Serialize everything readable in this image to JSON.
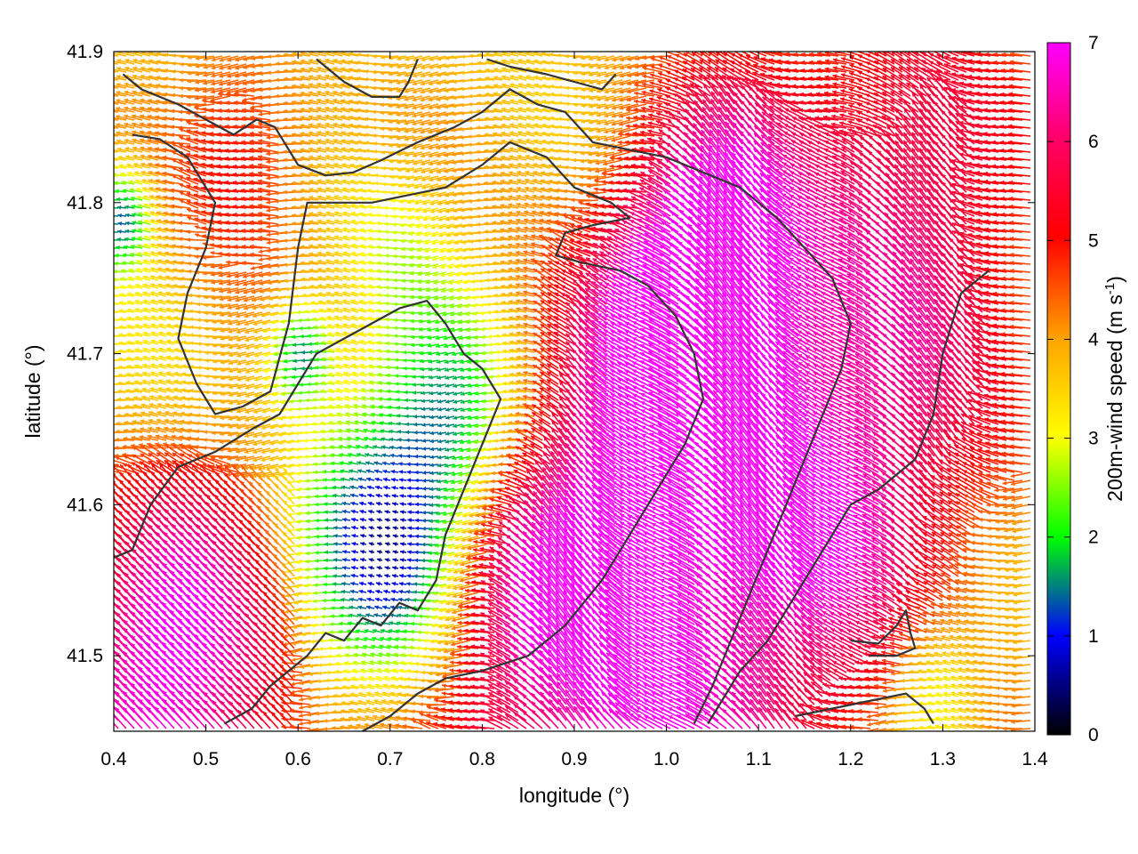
{
  "chart_data": {
    "type": "vector-field",
    "xlabel": "longitude (°)",
    "ylabel": "latitude (°)",
    "xlim": [
      0.4,
      1.4
    ],
    "ylim": [
      41.45,
      41.9
    ],
    "xticks": [
      "0.4",
      "0.5",
      "0.6",
      "0.7",
      "0.8",
      "0.9",
      "1.0",
      "1.1",
      "1.2",
      "1.3",
      "1.4"
    ],
    "yticks": [
      "41.5",
      "41.6",
      "41.7",
      "41.8",
      "41.9"
    ],
    "colorbar": {
      "label": "200m-wind speed (m s",
      "label_sup": "-1",
      "label_close": ")",
      "range": [
        0,
        7
      ],
      "ticks": [
        "0",
        "1",
        "2",
        "3",
        "4",
        "5",
        "6",
        "7"
      ],
      "colors": [
        "#000000",
        "#0000ff",
        "#00ff00",
        "#ffff00",
        "#ffa500",
        "#ff0000",
        "#ff00ff"
      ]
    },
    "contours": [
      [
        [
          0.41,
          41.885
        ],
        [
          0.43,
          41.875
        ],
        [
          0.47,
          41.865
        ],
        [
          0.5,
          41.855
        ],
        [
          0.53,
          41.845
        ],
        [
          0.555,
          41.855
        ],
        [
          0.575,
          41.85
        ],
        [
          0.6,
          41.825
        ],
        [
          0.63,
          41.818
        ],
        [
          0.66,
          41.82
        ],
        [
          0.69,
          41.828
        ],
        [
          0.73,
          41.84
        ],
        [
          0.77,
          41.85
        ],
        [
          0.8,
          41.86
        ],
        [
          0.83,
          41.875
        ],
        [
          0.86,
          41.865
        ],
        [
          0.89,
          41.86
        ],
        [
          0.92,
          41.84
        ],
        [
          0.96,
          41.835
        ],
        [
          1.0,
          41.83
        ],
        [
          1.04,
          41.82
        ],
        [
          1.08,
          41.81
        ],
        [
          1.12,
          41.79
        ],
        [
          1.15,
          41.77
        ],
        [
          1.18,
          41.75
        ],
        [
          1.2,
          41.72
        ],
        [
          1.19,
          41.69
        ],
        [
          1.17,
          41.66
        ],
        [
          1.15,
          41.63
        ],
        [
          1.13,
          41.6
        ],
        [
          1.11,
          41.57
        ],
        [
          1.09,
          41.54
        ],
        [
          1.07,
          41.51
        ],
        [
          1.05,
          41.48
        ],
        [
          1.03,
          41.455
        ]
      ],
      [
        [
          0.42,
          41.845
        ],
        [
          0.45,
          41.842
        ],
        [
          0.48,
          41.83
        ],
        [
          0.51,
          41.8
        ],
        [
          0.5,
          41.77
        ],
        [
          0.48,
          41.74
        ],
        [
          0.47,
          41.71
        ],
        [
          0.49,
          41.68
        ],
        [
          0.51,
          41.66
        ],
        [
          0.54,
          41.665
        ],
        [
          0.57,
          41.675
        ],
        [
          0.59,
          41.72
        ],
        [
          0.6,
          41.77
        ],
        [
          0.61,
          41.8
        ],
        [
          0.64,
          41.8
        ],
        [
          0.68,
          41.8
        ],
        [
          0.72,
          41.805
        ],
        [
          0.76,
          41.81
        ],
        [
          0.8,
          41.825
        ],
        [
          0.83,
          41.84
        ],
        [
          0.87,
          41.83
        ],
        [
          0.9,
          41.81
        ],
        [
          0.94,
          41.8
        ],
        [
          0.96,
          41.79
        ],
        [
          0.92,
          41.785
        ],
        [
          0.89,
          41.78
        ],
        [
          0.88,
          41.765
        ],
        [
          0.91,
          41.76
        ],
        [
          0.95,
          41.755
        ],
        [
          0.98,
          41.745
        ],
        [
          1.01,
          41.725
        ],
        [
          1.03,
          41.7
        ],
        [
          1.04,
          41.67
        ],
        [
          1.02,
          41.64
        ],
        [
          0.99,
          41.61
        ],
        [
          0.96,
          41.58
        ],
        [
          0.93,
          41.55
        ],
        [
          0.89,
          41.52
        ],
        [
          0.85,
          41.5
        ],
        [
          0.8,
          41.49
        ],
        [
          0.76,
          41.485
        ],
        [
          0.73,
          41.475
        ],
        [
          0.7,
          41.46
        ],
        [
          0.67,
          41.45
        ]
      ],
      [
        [
          0.4,
          41.565
        ],
        [
          0.42,
          41.57
        ],
        [
          0.44,
          41.6
        ],
        [
          0.47,
          41.625
        ],
        [
          0.51,
          41.635
        ],
        [
          0.55,
          41.65
        ],
        [
          0.58,
          41.66
        ],
        [
          0.6,
          41.68
        ],
        [
          0.62,
          41.7
        ],
        [
          0.65,
          41.71
        ],
        [
          0.68,
          41.72
        ],
        [
          0.71,
          41.73
        ],
        [
          0.74,
          41.735
        ],
        [
          0.76,
          41.72
        ],
        [
          0.78,
          41.7
        ],
        [
          0.8,
          41.69
        ],
        [
          0.82,
          41.67
        ],
        [
          0.8,
          41.64
        ],
        [
          0.78,
          41.61
        ],
        [
          0.76,
          41.58
        ],
        [
          0.75,
          41.55
        ],
        [
          0.73,
          41.53
        ],
        [
          0.71,
          41.535
        ],
        [
          0.69,
          41.52
        ],
        [
          0.67,
          41.525
        ],
        [
          0.65,
          41.51
        ],
        [
          0.63,
          41.515
        ],
        [
          0.61,
          41.5
        ],
        [
          0.59,
          41.49
        ],
        [
          0.57,
          41.48
        ],
        [
          0.55,
          41.465
        ],
        [
          0.52,
          41.455
        ]
      ],
      [
        [
          1.35,
          41.755
        ],
        [
          1.32,
          41.74
        ],
        [
          1.3,
          41.7
        ],
        [
          1.29,
          41.66
        ],
        [
          1.27,
          41.63
        ],
        [
          1.25,
          41.62
        ],
        [
          1.23,
          41.61
        ],
        [
          1.2,
          41.6
        ],
        [
          1.17,
          41.57
        ],
        [
          1.14,
          41.54
        ],
        [
          1.11,
          41.51
        ],
        [
          1.08,
          41.49
        ],
        [
          1.06,
          41.47
        ],
        [
          1.045,
          41.455
        ]
      ],
      [
        [
          1.14,
          41.46
        ],
        [
          1.18,
          41.465
        ],
        [
          1.22,
          41.47
        ],
        [
          1.26,
          41.475
        ],
        [
          1.28,
          41.465
        ],
        [
          1.29,
          41.455
        ]
      ],
      [
        [
          1.2,
          41.51
        ],
        [
          1.23,
          41.508
        ],
        [
          1.25,
          41.52
        ],
        [
          1.26,
          41.53
        ],
        [
          1.265,
          41.515
        ],
        [
          1.27,
          41.505
        ],
        [
          1.25,
          41.5
        ],
        [
          1.22,
          41.5
        ]
      ],
      [
        [
          0.62,
          41.895
        ],
        [
          0.65,
          41.88
        ],
        [
          0.68,
          41.87
        ],
        [
          0.71,
          41.87
        ],
        [
          0.72,
          41.88
        ],
        [
          0.73,
          41.895
        ]
      ],
      [
        [
          0.805,
          41.895
        ],
        [
          0.83,
          41.89
        ],
        [
          0.87,
          41.885
        ],
        [
          0.9,
          41.88
        ],
        [
          0.93,
          41.875
        ],
        [
          0.945,
          41.885
        ]
      ]
    ]
  }
}
